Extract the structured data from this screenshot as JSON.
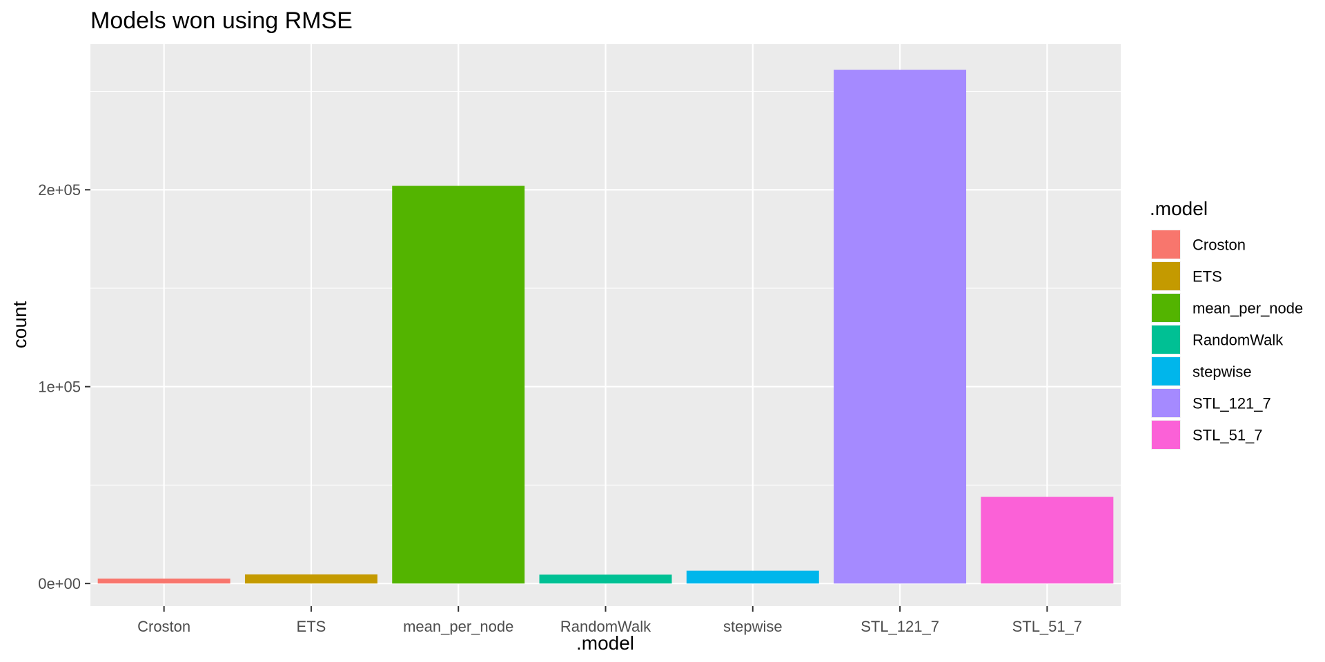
{
  "chart_data": {
    "type": "bar",
    "title": "Models won using RMSE",
    "xlabel": ".model",
    "ylabel": "count",
    "categories": [
      "Croston",
      "ETS",
      "mean_per_node",
      "RandomWalk",
      "stepwise",
      "STL_121_7",
      "STL_51_7"
    ],
    "values": [
      2500,
      4600,
      202000,
      4500,
      6500,
      261000,
      44000
    ],
    "colors": [
      "#F8766D",
      "#C49A00",
      "#53B400",
      "#00C094",
      "#00B6EB",
      "#A58AFF",
      "#FB61D7"
    ],
    "ylim": [
      -11500,
      274000
    ],
    "yticks": [
      0,
      100000,
      200000
    ],
    "ytick_labels": [
      "0e+00",
      "1e+05",
      "2e+05"
    ],
    "grid": true,
    "legend": {
      "title": ".model",
      "position": "right",
      "entries": [
        "Croston",
        "ETS",
        "mean_per_node",
        "RandomWalk",
        "stepwise",
        "STL_121_7",
        "STL_51_7"
      ]
    }
  }
}
